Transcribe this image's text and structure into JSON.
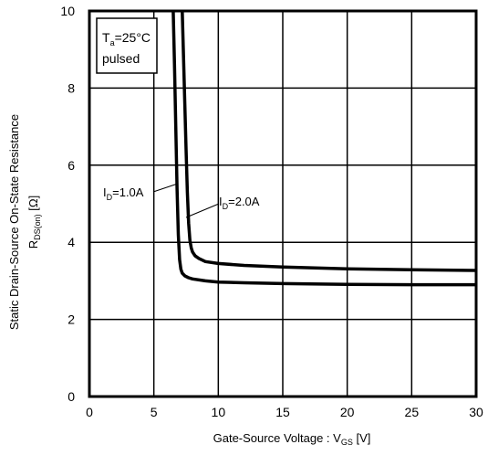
{
  "chart_data": {
    "type": "line",
    "xlabel": "Gate-Source Voltage : V",
    "xlabel_sub": "GS",
    "xlabel_unit": " [V]",
    "ylabel_line1": "Static Drain-Source On-State Resistance",
    "ylabel_line2_main": "R",
    "ylabel_line2_sub": "DS(on)",
    "ylabel_line2_unit": " [Ω]",
    "xlim": [
      0,
      30
    ],
    "ylim": [
      0,
      10
    ],
    "xticks": [
      0,
      5,
      10,
      15,
      20,
      25,
      30
    ],
    "yticks": [
      0,
      2,
      4,
      6,
      8,
      10
    ],
    "grid": true,
    "condition_box": {
      "line1_main": "T",
      "line1_sub": "a",
      "line1_rest": "=25°C",
      "line2": "pulsed"
    },
    "series": [
      {
        "name_main": "I",
        "name_sub": "D",
        "name_rest": "=1.0A",
        "x": [
          6.5,
          6.6,
          6.7,
          6.8,
          6.9,
          7.0,
          7.1,
          7.2,
          7.4,
          7.7,
          8.0,
          9.0,
          10,
          12,
          15,
          20,
          25,
          30
        ],
        "y": [
          10.0,
          8.6,
          7.0,
          5.4,
          4.2,
          3.55,
          3.3,
          3.2,
          3.13,
          3.08,
          3.05,
          3.0,
          2.97,
          2.95,
          2.93,
          2.91,
          2.9,
          2.9
        ]
      },
      {
        "name_main": "I",
        "name_sub": "D",
        "name_rest": "=2.0A",
        "x": [
          7.2,
          7.3,
          7.4,
          7.5,
          7.6,
          7.7,
          7.8,
          7.9,
          8.0,
          8.2,
          8.5,
          9.0,
          10,
          12,
          15,
          20,
          25,
          30
        ],
        "y": [
          10.0,
          8.8,
          7.6,
          6.4,
          5.3,
          4.5,
          4.05,
          3.85,
          3.75,
          3.65,
          3.58,
          3.5,
          3.45,
          3.4,
          3.36,
          3.31,
          3.29,
          3.27
        ]
      }
    ]
  }
}
